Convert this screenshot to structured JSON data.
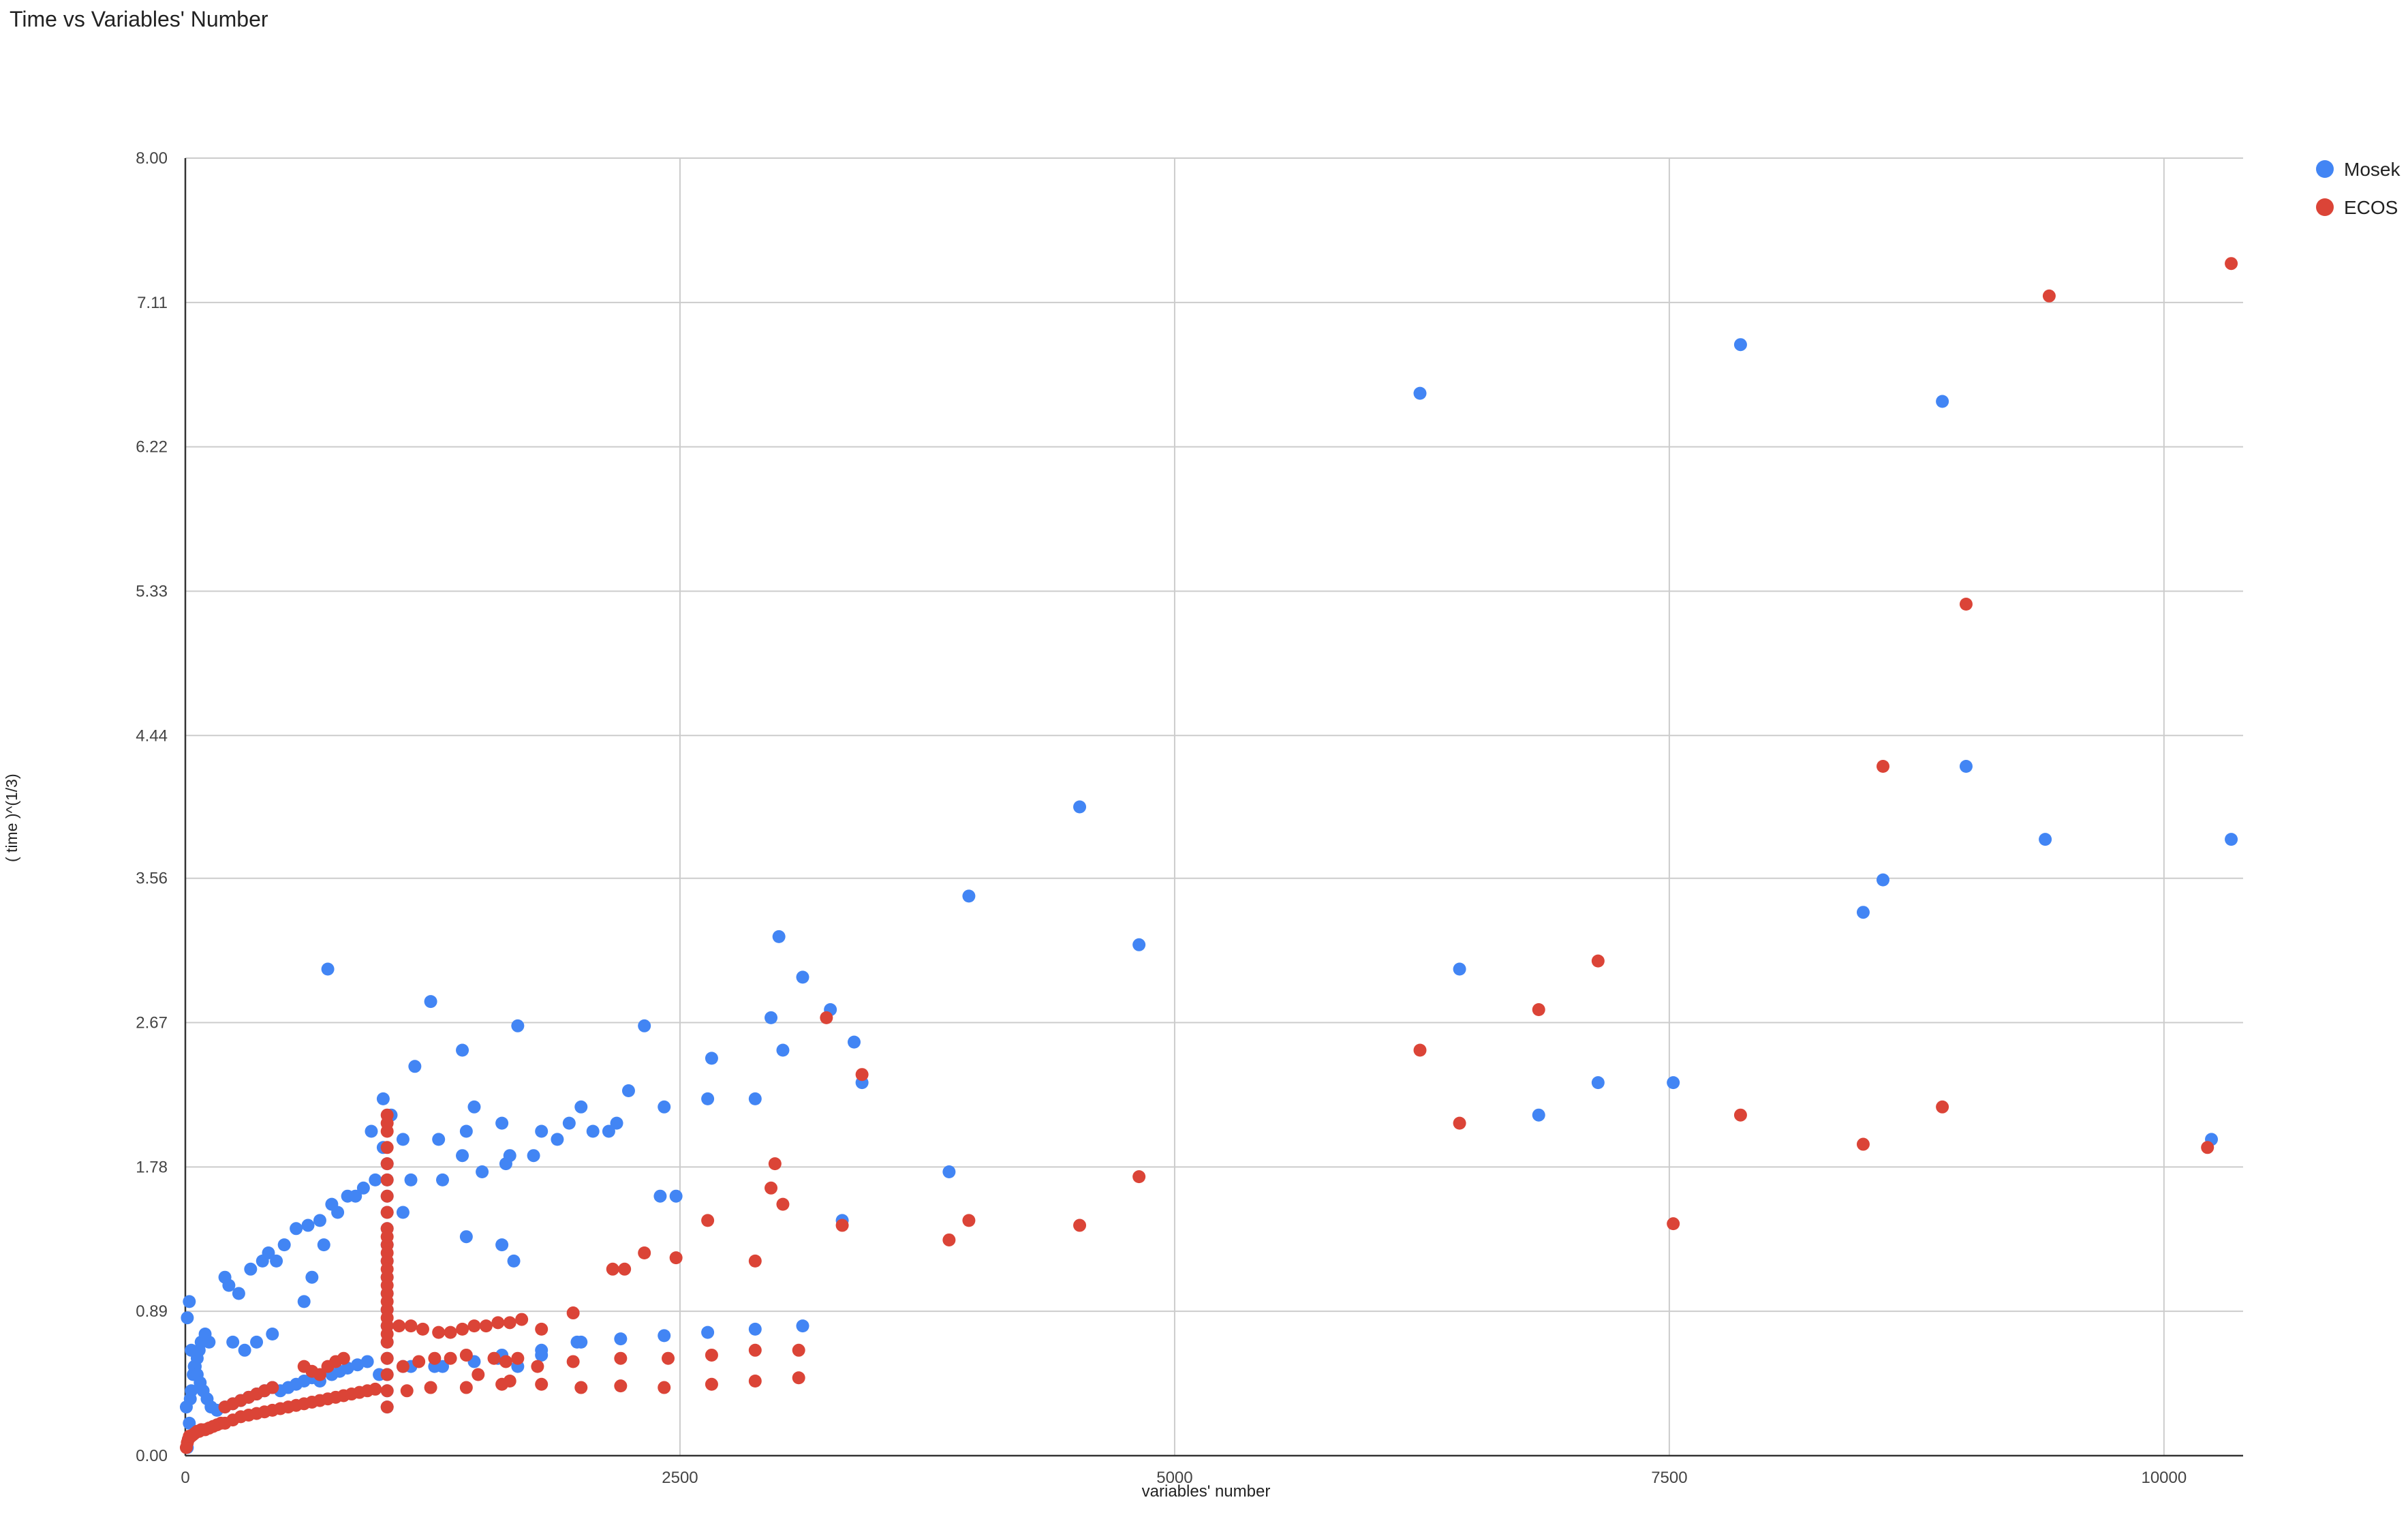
{
  "chart_data": {
    "type": "scatter",
    "title": "Time vs Variables' Number",
    "xlabel": "variables' number",
    "ylabel": "( time )^(1/3)",
    "xlim": [
      0,
      10400
    ],
    "ylim": [
      0,
      8
    ],
    "x_ticks": [
      0,
      2500,
      5000,
      7500,
      10000
    ],
    "y_ticks": [
      "0.00",
      "0.89",
      "1.78",
      "2.67",
      "3.56",
      "4.44",
      "5.33",
      "6.22",
      "7.11",
      "8.00"
    ],
    "grid": true,
    "legend": "top-right",
    "series": [
      {
        "name": "Mosek",
        "color": "#4285F4",
        "x": [
          10,
          15,
          20,
          5,
          25,
          30,
          40,
          50,
          60,
          70,
          80,
          100,
          120,
          10,
          20,
          30,
          45,
          60,
          75,
          90,
          110,
          130,
          160,
          200,
          240,
          280,
          320,
          360,
          400,
          440,
          480,
          520,
          560,
          600,
          640,
          680,
          740,
          780,
          820,
          870,
          920,
          980,
          200,
          220,
          270,
          330,
          390,
          420,
          460,
          240,
          300,
          360,
          440,
          500,
          560,
          620,
          680,
          740,
          820,
          900,
          960,
          600,
          640,
          700,
          770,
          860,
          940,
          1000,
          720,
          1240,
          1400,
          1680,
          1160,
          1040,
          1000,
          1100,
          1280,
          1420,
          1460,
          1600,
          1620,
          1760,
          1800,
          1940,
          2000,
          1400,
          1500,
          1640,
          1880,
          2060,
          2140,
          2180,
          2240,
          2320,
          2420,
          2480,
          2640,
          2660,
          2880,
          2960,
          3020,
          3120,
          3260,
          3000,
          3320,
          3420,
          3860,
          3960,
          4520,
          4820,
          6240,
          6440,
          6840,
          7140,
          7520,
          7860,
          8480,
          8580,
          8880,
          9000,
          9400,
          10240,
          10340,
          1020,
          1020,
          1020,
          1020,
          1020,
          1020,
          1020,
          1020,
          1020,
          1020,
          1020,
          1020,
          1020,
          1020,
          1020,
          1020,
          1100,
          1140,
          1260,
          1300,
          1460,
          1580,
          1600,
          1680,
          1800,
          1980,
          2200,
          2420,
          2640,
          2880,
          3120,
          1100,
          1140,
          1300,
          1420,
          1600,
          1660,
          1800,
          2000,
          3380,
          2400
        ],
        "y": [
          0.05,
          0.1,
          0.2,
          0.3,
          0.35,
          0.4,
          0.5,
          0.55,
          0.6,
          0.65,
          0.7,
          0.75,
          0.7,
          0.85,
          0.95,
          0.65,
          0.55,
          0.5,
          0.45,
          0.4,
          0.35,
          0.3,
          0.28,
          0.3,
          0.32,
          0.34,
          0.36,
          0.38,
          0.4,
          0.42,
          0.4,
          0.42,
          0.44,
          0.46,
          0.48,
          0.46,
          0.5,
          0.52,
          0.54,
          0.56,
          0.58,
          0.5,
          1.1,
          1.05,
          1.0,
          1.15,
          1.2,
          1.25,
          1.2,
          0.7,
          0.65,
          0.7,
          0.75,
          1.3,
          1.4,
          1.42,
          1.45,
          1.55,
          1.6,
          1.65,
          1.7,
          0.95,
          1.1,
          1.3,
          1.5,
          1.6,
          2.0,
          2.2,
          3.0,
          2.8,
          2.5,
          2.65,
          2.4,
          2.1,
          1.9,
          1.95,
          1.95,
          2.0,
          2.15,
          2.05,
          1.8,
          1.85,
          2.0,
          2.05,
          2.15,
          1.85,
          1.75,
          1.85,
          1.95,
          2.0,
          2.0,
          2.05,
          2.25,
          2.65,
          2.15,
          1.6,
          2.2,
          2.45,
          2.2,
          2.7,
          2.5,
          2.95,
          2.75,
          3.2,
          1.45,
          2.3,
          1.75,
          3.45,
          4.0,
          3.15,
          6.55,
          3.0,
          2.1,
          2.3,
          2.3,
          6.85,
          3.35,
          3.55,
          6.5,
          4.25,
          3.8,
          1.95,
          3.8,
          0.3,
          0.4,
          0.5,
          0.6,
          0.7,
          0.8,
          0.9,
          1.0,
          1.1,
          1.2,
          1.3,
          1.4,
          1.5,
          1.6,
          1.7,
          1.8,
          0.55,
          0.55,
          0.55,
          0.55,
          0.58,
          0.6,
          0.62,
          0.55,
          0.65,
          0.7,
          0.72,
          0.74,
          0.76,
          0.78,
          0.8,
          1.5,
          1.7,
          1.7,
          1.35,
          1.3,
          1.2,
          0.62,
          0.7,
          2.55,
          1.6
        ]
      },
      {
        "name": "ECOS",
        "color": "#DB4437",
        "x": [
          5,
          10,
          15,
          20,
          30,
          40,
          50,
          60,
          70,
          80,
          100,
          120,
          140,
          160,
          180,
          200,
          240,
          280,
          320,
          360,
          400,
          440,
          480,
          520,
          560,
          600,
          640,
          680,
          720,
          760,
          800,
          840,
          880,
          920,
          960,
          200,
          240,
          280,
          320,
          360,
          400,
          440,
          600,
          640,
          680,
          720,
          760,
          800,
          1020,
          1020,
          1020,
          1020,
          1020,
          1020,
          1020,
          1020,
          1020,
          1020,
          1020,
          1020,
          1020,
          1020,
          1020,
          1020,
          1020,
          1020,
          1020,
          1020,
          1020,
          1020,
          1020,
          1020,
          1020,
          1020,
          1020,
          1080,
          1140,
          1200,
          1280,
          1340,
          1400,
          1460,
          1520,
          1580,
          1640,
          1700,
          1800,
          1960,
          2160,
          2220,
          2320,
          2480,
          2640,
          2880,
          2980,
          3020,
          3240,
          3420,
          3320,
          3860,
          3960,
          4520,
          4820,
          6240,
          6440,
          6840,
          7140,
          7520,
          7860,
          8480,
          8580,
          8880,
          9000,
          9420,
          10220,
          10340,
          1100,
          1180,
          1260,
          1340,
          1420,
          1480,
          1560,
          1620,
          1680,
          1780,
          1960,
          2200,
          2440,
          2660,
          2880,
          3100,
          1120,
          1240,
          1420,
          1600,
          1640,
          1800,
          2000,
          2200,
          2420,
          2660,
          2880,
          3100,
          2960
        ],
        "y": [
          0.05,
          0.08,
          0.1,
          0.12,
          0.12,
          0.13,
          0.14,
          0.15,
          0.15,
          0.16,
          0.16,
          0.17,
          0.18,
          0.19,
          0.2,
          0.2,
          0.22,
          0.24,
          0.25,
          0.26,
          0.27,
          0.28,
          0.29,
          0.3,
          0.31,
          0.32,
          0.33,
          0.34,
          0.35,
          0.36,
          0.37,
          0.38,
          0.39,
          0.4,
          0.41,
          0.3,
          0.32,
          0.34,
          0.36,
          0.38,
          0.4,
          0.42,
          0.55,
          0.52,
          0.5,
          0.55,
          0.58,
          0.6,
          0.3,
          0.4,
          0.5,
          0.6,
          0.7,
          0.8,
          0.9,
          1.0,
          1.1,
          1.2,
          1.3,
          1.4,
          1.5,
          1.6,
          1.7,
          1.8,
          1.9,
          2.0,
          2.05,
          2.1,
          0.75,
          0.85,
          0.95,
          1.05,
          1.15,
          1.25,
          1.35,
          0.8,
          0.8,
          0.78,
          0.76,
          0.76,
          0.78,
          0.8,
          0.8,
          0.82,
          0.82,
          0.84,
          0.78,
          0.88,
          1.15,
          1.15,
          1.25,
          1.22,
          1.45,
          1.2,
          1.8,
          1.55,
          2.7,
          2.35,
          1.42,
          1.33,
          1.45,
          1.42,
          1.72,
          2.5,
          2.05,
          2.75,
          3.05,
          1.43,
          2.1,
          1.92,
          4.25,
          2.15,
          5.25,
          7.15,
          1.9,
          7.35,
          0.55,
          0.58,
          0.6,
          0.6,
          0.62,
          0.5,
          0.6,
          0.58,
          0.6,
          0.55,
          0.58,
          0.6,
          0.6,
          0.62,
          0.65,
          0.65,
          0.4,
          0.42,
          0.42,
          0.44,
          0.46,
          0.44,
          0.42,
          0.43,
          0.42,
          0.44,
          0.46,
          0.48,
          1.65
        ],
        "note": ""
      }
    ]
  }
}
